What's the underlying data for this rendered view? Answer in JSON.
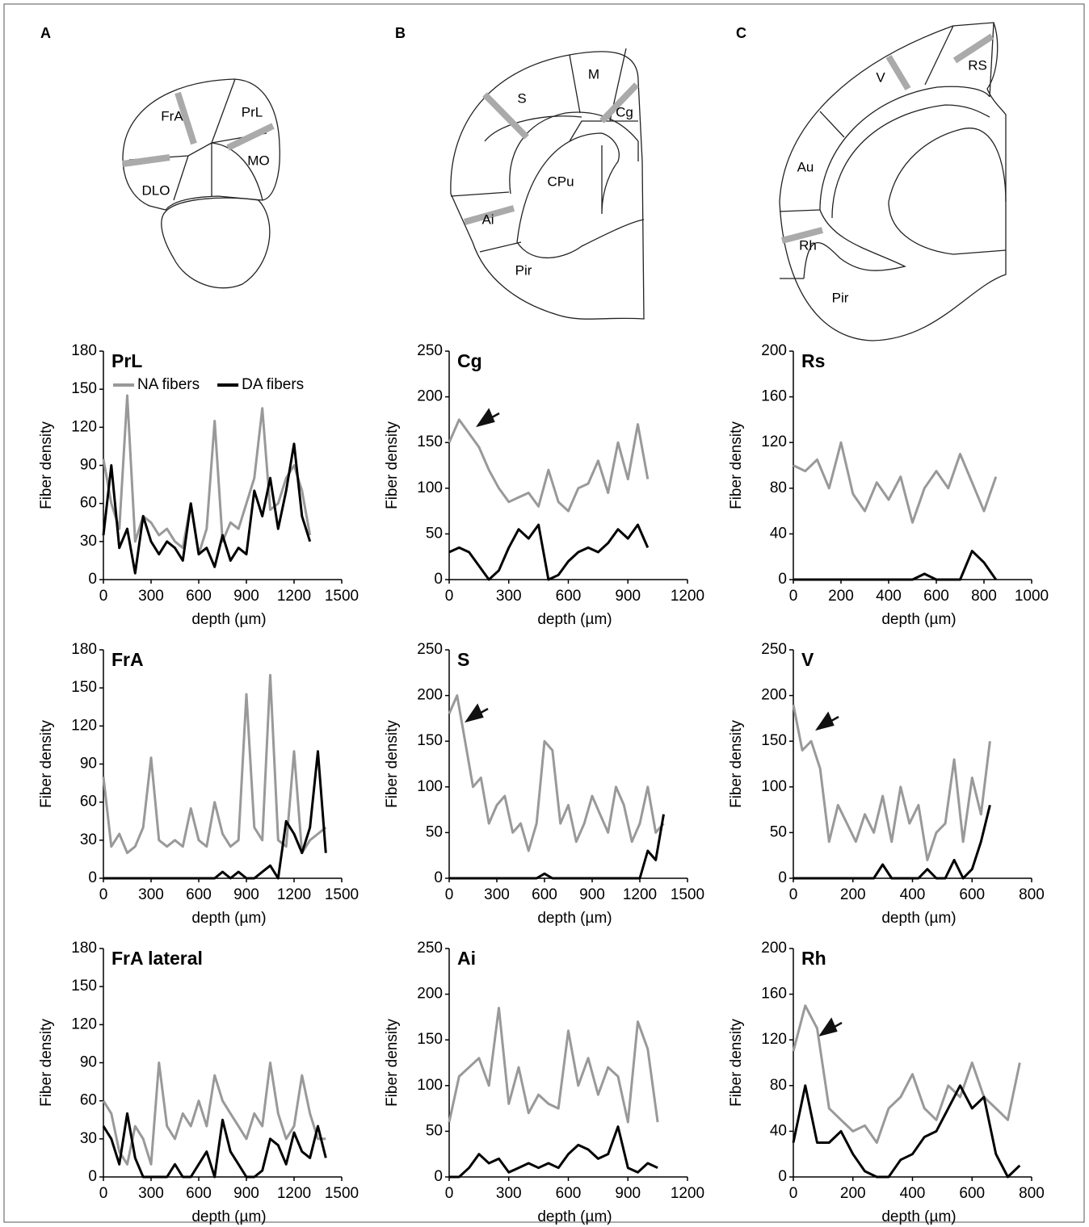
{
  "panel_labels": [
    "A",
    "B",
    "C"
  ],
  "diagrams": [
    {
      "regions": [
        "FrA",
        "PrL",
        "MO",
        "DLO"
      ]
    },
    {
      "regions": [
        "M",
        "S",
        "Cg",
        "CPu",
        "Ai",
        "Pir"
      ]
    },
    {
      "regions": [
        "V",
        "RS",
        "Au",
        "Rh",
        "Pir"
      ]
    }
  ],
  "chart_data": [
    {
      "type": "line",
      "title": "PrL",
      "xlabel": "depth (µm)",
      "ylabel": "Fiber density",
      "legend": "top",
      "x": [
        0,
        50,
        100,
        150,
        200,
        250,
        300,
        350,
        400,
        450,
        500,
        550,
        600,
        650,
        700,
        750,
        800,
        850,
        900,
        950,
        1000,
        1050,
        1100,
        1150,
        1200,
        1250,
        1300
      ],
      "series": [
        {
          "name": "NA fibers",
          "color": "#999999",
          "values": [
            95,
            60,
            40,
            145,
            30,
            50,
            45,
            35,
            40,
            30,
            25,
            60,
            20,
            40,
            125,
            30,
            45,
            40,
            60,
            80,
            135,
            55,
            60,
            80,
            90,
            70,
            35
          ]
        },
        {
          "name": "DA fibers",
          "color": "#000000",
          "values": [
            35,
            90,
            25,
            40,
            5,
            50,
            30,
            20,
            30,
            25,
            15,
            60,
            20,
            25,
            10,
            35,
            15,
            25,
            20,
            70,
            50,
            80,
            40,
            70,
            107,
            50,
            30
          ]
        }
      ],
      "xlim": [
        0,
        1500
      ],
      "xticks": [
        0,
        300,
        600,
        900,
        1200,
        1500
      ],
      "ylim": [
        0,
        180
      ],
      "yticks": [
        0,
        30,
        60,
        90,
        120,
        150,
        180
      ]
    },
    {
      "type": "line",
      "title": "Cg",
      "xlabel": "depth (µm)",
      "ylabel": "Fiber density",
      "x": [
        0,
        50,
        100,
        150,
        200,
        250,
        300,
        350,
        400,
        450,
        500,
        550,
        600,
        650,
        700,
        750,
        800,
        850,
        900,
        950,
        1000
      ],
      "series": [
        {
          "color": "#999999",
          "values": [
            150,
            175,
            160,
            145,
            120,
            100,
            85,
            90,
            95,
            80,
            120,
            85,
            75,
            100,
            105,
            130,
            95,
            150,
            110,
            170,
            110
          ]
        },
        {
          "color": "#000000",
          "values": [
            30,
            35,
            30,
            15,
            0,
            10,
            35,
            55,
            45,
            60,
            0,
            5,
            20,
            30,
            35,
            30,
            40,
            55,
            45,
            60,
            35
          ]
        }
      ],
      "xlim": [
        0,
        1200
      ],
      "xticks": [
        0,
        300,
        600,
        900,
        1200
      ],
      "ylim": [
        0,
        250
      ],
      "yticks": [
        0,
        50,
        100,
        150,
        200,
        250
      ]
    },
    {
      "type": "line",
      "title": "Rs",
      "xlabel": "depth (µm)",
      "ylabel": "Fiber density",
      "x": [
        0,
        50,
        100,
        150,
        200,
        250,
        300,
        350,
        400,
        450,
        500,
        550,
        600,
        650,
        700,
        750,
        800,
        850
      ],
      "series": [
        {
          "color": "#999999",
          "values": [
            100,
            95,
            105,
            80,
            120,
            75,
            60,
            85,
            70,
            90,
            50,
            80,
            95,
            80,
            110,
            85,
            60,
            90
          ]
        },
        {
          "color": "#000000",
          "values": [
            0,
            0,
            0,
            0,
            0,
            0,
            0,
            0,
            0,
            0,
            0,
            5,
            0,
            0,
            0,
            25,
            15,
            0
          ]
        }
      ],
      "xlim": [
        0,
        1000
      ],
      "xticks": [
        0,
        200,
        400,
        600,
        800,
        1000
      ],
      "ylim": [
        0,
        200
      ],
      "yticks": [
        0,
        40,
        80,
        120,
        160,
        200
      ]
    },
    {
      "type": "line",
      "title": "FrA",
      "xlabel": "depth (µm)",
      "ylabel": "Fiber density",
      "x": [
        0,
        50,
        100,
        150,
        200,
        250,
        300,
        350,
        400,
        450,
        500,
        550,
        600,
        650,
        700,
        750,
        800,
        850,
        900,
        950,
        1000,
        1050,
        1100,
        1150,
        1200,
        1250,
        1300,
        1350,
        1400
      ],
      "series": [
        {
          "color": "#999999",
          "values": [
            80,
            25,
            35,
            20,
            25,
            40,
            95,
            30,
            25,
            30,
            25,
            55,
            30,
            25,
            60,
            35,
            25,
            30,
            145,
            40,
            30,
            160,
            30,
            25,
            100,
            20,
            30,
            35,
            40
          ]
        },
        {
          "color": "#000000",
          "values": [
            0,
            0,
            0,
            0,
            0,
            0,
            0,
            0,
            0,
            0,
            0,
            0,
            0,
            0,
            0,
            5,
            0,
            5,
            0,
            0,
            5,
            10,
            0,
            45,
            35,
            20,
            40,
            100,
            20
          ]
        }
      ],
      "xlim": [
        0,
        1500
      ],
      "xticks": [
        0,
        300,
        600,
        900,
        1200,
        1500
      ],
      "ylim": [
        0,
        180
      ],
      "yticks": [
        0,
        30,
        60,
        90,
        120,
        150,
        180
      ]
    },
    {
      "type": "line",
      "title": "S",
      "xlabel": "depth (µm)",
      "ylabel": "Fiber density",
      "x": [
        0,
        50,
        100,
        150,
        200,
        250,
        300,
        350,
        400,
        450,
        500,
        550,
        600,
        650,
        700,
        750,
        800,
        850,
        900,
        950,
        1000,
        1050,
        1100,
        1150,
        1200,
        1250,
        1300,
        1350
      ],
      "series": [
        {
          "color": "#999999",
          "values": [
            180,
            200,
            150,
            100,
            110,
            60,
            80,
            90,
            50,
            60,
            30,
            60,
            150,
            140,
            60,
            80,
            40,
            60,
            90,
            70,
            50,
            100,
            80,
            40,
            60,
            100,
            50,
            60
          ]
        },
        {
          "color": "#000000",
          "values": [
            0,
            0,
            0,
            0,
            0,
            0,
            0,
            0,
            0,
            0,
            0,
            0,
            5,
            0,
            0,
            0,
            0,
            0,
            0,
            0,
            0,
            0,
            0,
            0,
            0,
            30,
            20,
            70
          ]
        }
      ],
      "xlim": [
        0,
        1500
      ],
      "xticks": [
        0,
        300,
        600,
        900,
        1200,
        1500
      ],
      "ylim": [
        0,
        250
      ],
      "yticks": [
        0,
        50,
        100,
        150,
        200,
        250
      ]
    },
    {
      "type": "line",
      "title": "V",
      "xlabel": "depth (µm)",
      "ylabel": "Fiber density",
      "x": [
        0,
        30,
        60,
        90,
        120,
        150,
        180,
        210,
        240,
        270,
        300,
        330,
        360,
        390,
        420,
        450,
        480,
        510,
        540,
        570,
        600,
        630,
        660
      ],
      "series": [
        {
          "color": "#999999",
          "values": [
            190,
            140,
            150,
            120,
            40,
            80,
            60,
            40,
            70,
            50,
            90,
            40,
            100,
            60,
            80,
            20,
            50,
            60,
            130,
            40,
            110,
            70,
            150
          ]
        },
        {
          "color": "#000000",
          "values": [
            0,
            0,
            0,
            0,
            0,
            0,
            0,
            0,
            0,
            0,
            15,
            0,
            0,
            0,
            0,
            10,
            0,
            0,
            20,
            0,
            10,
            40,
            80
          ]
        }
      ],
      "xlim": [
        0,
        800
      ],
      "xticks": [
        0,
        200,
        400,
        600,
        800
      ],
      "ylim": [
        0,
        250
      ],
      "yticks": [
        0,
        50,
        100,
        150,
        200,
        250
      ]
    },
    {
      "type": "line",
      "title": "FrA lateral",
      "xlabel": "depth (µm)",
      "ylabel": "Fiber density",
      "x": [
        0,
        50,
        100,
        150,
        200,
        250,
        300,
        350,
        400,
        450,
        500,
        550,
        600,
        650,
        700,
        750,
        800,
        850,
        900,
        950,
        1000,
        1050,
        1100,
        1150,
        1200,
        1250,
        1300,
        1350,
        1400
      ],
      "series": [
        {
          "color": "#999999",
          "values": [
            60,
            50,
            20,
            10,
            40,
            30,
            10,
            90,
            40,
            30,
            50,
            40,
            60,
            40,
            80,
            60,
            50,
            40,
            30,
            50,
            40,
            90,
            50,
            30,
            40,
            80,
            50,
            30,
            30
          ]
        },
        {
          "color": "#000000",
          "values": [
            40,
            30,
            10,
            50,
            15,
            0,
            0,
            0,
            0,
            10,
            0,
            0,
            10,
            20,
            0,
            45,
            20,
            10,
            0,
            0,
            5,
            30,
            25,
            10,
            35,
            20,
            15,
            40,
            15
          ]
        }
      ],
      "xlim": [
        0,
        1500
      ],
      "xticks": [
        0,
        300,
        600,
        900,
        1200,
        1500
      ],
      "ylim": [
        0,
        180
      ],
      "yticks": [
        0,
        30,
        60,
        90,
        120,
        150,
        180
      ]
    },
    {
      "type": "line",
      "title": "Ai",
      "xlabel": "depth (µm)",
      "ylabel": "Fiber density",
      "x": [
        0,
        50,
        100,
        150,
        200,
        250,
        300,
        350,
        400,
        450,
        500,
        550,
        600,
        650,
        700,
        750,
        800,
        850,
        900,
        950,
        1000,
        1050
      ],
      "series": [
        {
          "color": "#999999",
          "values": [
            60,
            110,
            120,
            130,
            100,
            185,
            80,
            120,
            70,
            90,
            80,
            75,
            160,
            100,
            130,
            90,
            120,
            110,
            60,
            170,
            140,
            60
          ]
        },
        {
          "color": "#000000",
          "values": [
            0,
            0,
            10,
            25,
            15,
            20,
            5,
            10,
            15,
            10,
            15,
            10,
            25,
            35,
            30,
            20,
            25,
            55,
            10,
            5,
            15,
            10
          ]
        }
      ],
      "xlim": [
        0,
        1200
      ],
      "xticks": [
        0,
        300,
        600,
        900,
        1200
      ],
      "ylim": [
        0,
        250
      ],
      "yticks": [
        0,
        50,
        100,
        150,
        200,
        250
      ]
    },
    {
      "type": "line",
      "title": "Rh",
      "xlabel": "depth (µm)",
      "ylabel": "Fiber density",
      "x": [
        0,
        40,
        80,
        120,
        160,
        200,
        240,
        280,
        320,
        360,
        400,
        440,
        480,
        520,
        560,
        600,
        640,
        680,
        720,
        760
      ],
      "series": [
        {
          "color": "#999999",
          "values": [
            110,
            150,
            130,
            60,
            50,
            40,
            45,
            30,
            60,
            70,
            90,
            60,
            50,
            80,
            70,
            100,
            70,
            60,
            50,
            100
          ]
        },
        {
          "color": "#000000",
          "values": [
            30,
            80,
            30,
            30,
            40,
            20,
            5,
            0,
            0,
            15,
            20,
            35,
            40,
            60,
            80,
            60,
            70,
            20,
            0,
            10
          ]
        }
      ],
      "xlim": [
        0,
        800
      ],
      "xticks": [
        0,
        200,
        400,
        600,
        800
      ],
      "ylim": [
        0,
        200
      ],
      "yticks": [
        0,
        40,
        80,
        120,
        160,
        200
      ]
    }
  ]
}
